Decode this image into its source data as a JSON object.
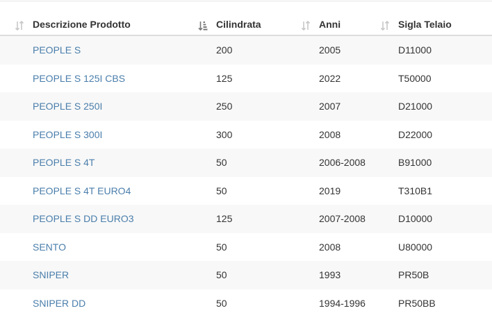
{
  "table": {
    "columns": [
      {
        "label": "Descrizione Prodotto",
        "sort_icon": "sort-inactive-icon"
      },
      {
        "label": "Cilindrata",
        "sort_icon": "sort-active-icon"
      },
      {
        "label": "Anni",
        "sort_icon": "sort-inactive-icon"
      },
      {
        "label": "Sigla Telaio",
        "sort_icon": "sort-inactive-icon"
      }
    ],
    "rows": [
      {
        "descrizione": "PEOPLE S",
        "cilindrata": "200",
        "anni": "2005",
        "sigla": "D11000"
      },
      {
        "descrizione": "PEOPLE S 125I CBS",
        "cilindrata": "125",
        "anni": "2022",
        "sigla": "T50000"
      },
      {
        "descrizione": "PEOPLE S 250I",
        "cilindrata": "250",
        "anni": "2007",
        "sigla": "D21000"
      },
      {
        "descrizione": "PEOPLE S 300I",
        "cilindrata": "300",
        "anni": "2008",
        "sigla": "D22000"
      },
      {
        "descrizione": "PEOPLE S 4T",
        "cilindrata": "50",
        "anni": "2006-2008",
        "sigla": "B91000"
      },
      {
        "descrizione": "PEOPLE S 4T EURO4",
        "cilindrata": "50",
        "anni": "2019",
        "sigla": "T310B1"
      },
      {
        "descrizione": "PEOPLE S DD EURO3",
        "cilindrata": "125",
        "anni": "2007-2008",
        "sigla": "D10000"
      },
      {
        "descrizione": "SENTO",
        "cilindrata": "50",
        "anni": "2008",
        "sigla": "U80000"
      },
      {
        "descrizione": "SNIPER",
        "cilindrata": "50",
        "anni": "1993",
        "sigla": "PR50B"
      },
      {
        "descrizione": "SNIPER DD",
        "cilindrata": "50",
        "anni": "1994-1996",
        "sigla": "PR50BB"
      }
    ]
  },
  "colors": {
    "link": "#4a7eab",
    "stripe": "#f8f8f8",
    "header_border": "#dddddd",
    "sort_inactive": "#c8c8c8",
    "sort_active": "#777777"
  }
}
